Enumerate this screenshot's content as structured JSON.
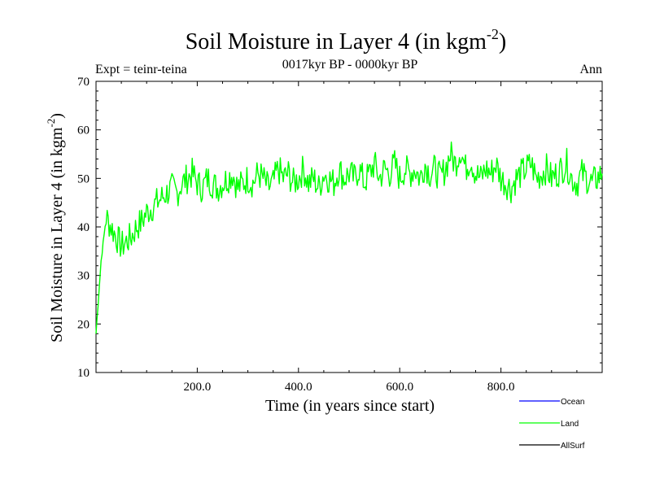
{
  "chart_data": {
    "type": "line",
    "title_main": "Soil Moisture in Layer 4 (in kgm",
    "title_sup": "-2",
    "title_close": ")",
    "subtitle": "0017kyr BP - 0000kyr BP",
    "left_label": "Expt = teinr-teina",
    "right_label": "Ann",
    "xlabel": "Time (in years since start)",
    "ylabel_main": "Soil Moisture in Layer 4 (in kgm",
    "ylabel_sup": "-2",
    "ylabel_close": ")",
    "xlim": [
      0,
      1000
    ],
    "ylim": [
      10,
      70
    ],
    "x_ticks": [
      200,
      400,
      600,
      800
    ],
    "x_tick_labels": [
      "200.0",
      "400.0",
      "600.0",
      "800.0"
    ],
    "y_ticks": [
      10,
      20,
      30,
      40,
      50,
      60,
      70
    ],
    "y_tick_labels": [
      "10",
      "20",
      "30",
      "40",
      "50",
      "60",
      "70"
    ],
    "legend": [
      {
        "name": "Ocean",
        "color": "#0000ff"
      },
      {
        "name": "Land",
        "color": "#00ff00"
      },
      {
        "name": "AllSurf",
        "color": "#000000"
      }
    ],
    "series": [
      {
        "name": "Land",
        "color": "#00ff00",
        "x_start": 0,
        "x_step": 10,
        "description": "Annual mean land soil moisture, sampled every 10 years (approximate read from plot)",
        "values": [
          18,
          33,
          42,
          40,
          38,
          36,
          37,
          38,
          40,
          41,
          43,
          44,
          45,
          46,
          47,
          48,
          47,
          49,
          50,
          51,
          49,
          48,
          50,
          49,
          48,
          49,
          50,
          51,
          48,
          49,
          50,
          49,
          51,
          50,
          48,
          49,
          52,
          50,
          51,
          49,
          50,
          52,
          49,
          50,
          48,
          51,
          50,
          49,
          52,
          50,
          51,
          50,
          52,
          49,
          51,
          53,
          50,
          52,
          51,
          53,
          50,
          52,
          51,
          52,
          50,
          53,
          51,
          52,
          50,
          52,
          55,
          53,
          56,
          52,
          54,
          51,
          50,
          52,
          51,
          53,
          50,
          49,
          48,
          50,
          51,
          52,
          53,
          50,
          51,
          52,
          50,
          51,
          52,
          53,
          50,
          49,
          51,
          50,
          49,
          50,
          51
        ]
      }
    ]
  }
}
